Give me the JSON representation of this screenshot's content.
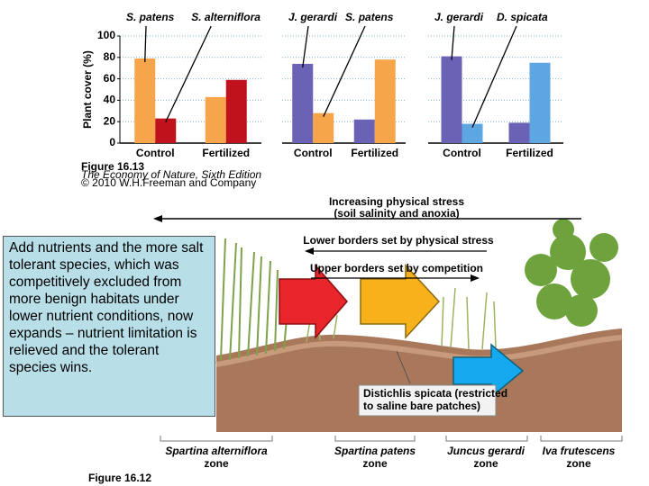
{
  "chart_data": [
    {
      "type": "bar",
      "y_label": "Plant cover (%)",
      "categories": [
        "Control",
        "Fertilized"
      ],
      "series": [
        {
          "name": "S. patens",
          "color": "#f7a54a",
          "values": [
            79,
            43
          ]
        },
        {
          "name": "S. alterniflora",
          "color": "#c0121c",
          "values": [
            23,
            59
          ]
        }
      ],
      "ylim": [
        0,
        100
      ],
      "yticks": [
        0,
        20,
        40,
        60,
        80,
        100
      ],
      "ytick_labels": true,
      "grid": true
    },
    {
      "type": "bar",
      "categories": [
        "Control",
        "Fertilized"
      ],
      "series": [
        {
          "name": "J. gerardi",
          "color": "#6a62b4",
          "values": [
            74,
            22
          ]
        },
        {
          "name": "S. patens",
          "color": "#f7a54a",
          "values": [
            28,
            78
          ]
        }
      ],
      "ylim": [
        0,
        100
      ],
      "yticks": [
        0,
        20,
        40,
        60,
        80,
        100
      ],
      "ytick_labels": false,
      "grid": true
    },
    {
      "type": "bar",
      "categories": [
        "Control",
        "Fertilized"
      ],
      "series": [
        {
          "name": "J. gerardi",
          "color": "#6a62b4",
          "values": [
            81,
            19
          ]
        },
        {
          "name": "D. spicata",
          "color": "#5ea6e2",
          "values": [
            18,
            75
          ]
        }
      ],
      "ylim": [
        0,
        100
      ],
      "yticks": [
        0,
        20,
        40,
        60,
        80,
        100
      ],
      "ytick_labels": false,
      "grid": true
    }
  ],
  "figure_caption": {
    "label": "Figure 16.13",
    "book": "The Economy of Nature, Sixth Edition",
    "copyright": "© 2010 W.H.Freeman and Company"
  },
  "diagram": {
    "stress_title": "Increasing physical stress",
    "stress_subtitle": "(soil salinity and anoxia)",
    "lower_borders": "Lower borders set by physical stress",
    "upper_borders": "Upper borders set by competition",
    "distichlis": [
      "Distichlis spicata (restricted",
      "to saline bare patches)"
    ],
    "zones": [
      {
        "name": "Spartina alterniflora",
        "label": "zone"
      },
      {
        "name": "Spartina patens",
        "label": "zone"
      },
      {
        "name": "Juncus gerardi",
        "label": "zone"
      },
      {
        "name": "Iva frutescens",
        "label": "zone"
      }
    ],
    "figure_label": "Figure 16.12"
  },
  "text_box": "Add nutrients and the more salt tolerant species, which was competitively excluded from more benign habitats under lower nutrient conditions, now expands – nutrient limitation is relieved and the tolerant species wins."
}
